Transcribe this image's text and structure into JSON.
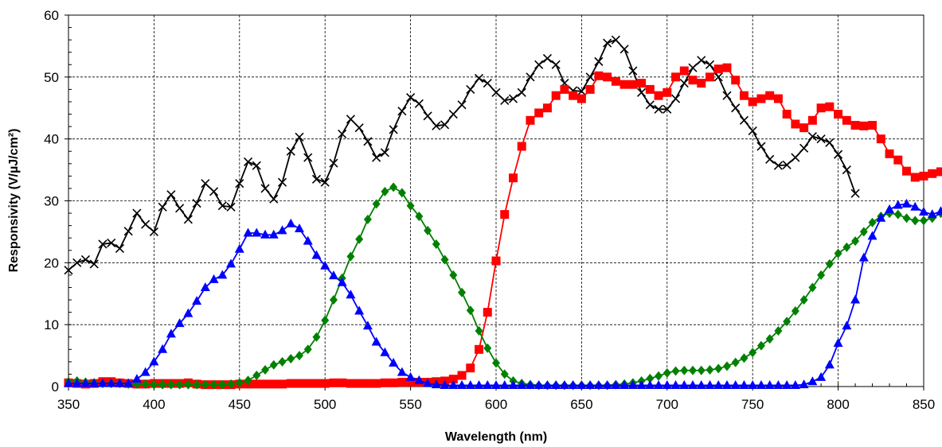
{
  "chart_data": {
    "type": "line",
    "title": "",
    "xlabel": "Wavelength (nm)",
    "ylabel": "Responsivity (V/µJ/cm²)",
    "xlim": [
      350,
      850
    ],
    "ylim": [
      0,
      60
    ],
    "x_ticks": [
      350,
      400,
      450,
      500,
      550,
      600,
      650,
      700,
      750,
      800,
      850
    ],
    "y_ticks": [
      0,
      10,
      20,
      30,
      40,
      50,
      60
    ],
    "grid": true,
    "grid_style": "dashed",
    "legend": "none",
    "x_step": 5,
    "series": [
      {
        "color": "#000000",
        "marker": "x",
        "x_start": 350,
        "values": [
          18.8,
          20,
          20.5,
          19.8,
          23,
          23.2,
          22.3,
          25.1,
          28,
          26.2,
          25,
          29,
          31,
          28.8,
          27,
          29.6,
          32.8,
          31.5,
          29.2,
          29,
          32.8,
          36.3,
          35.7,
          32,
          30.3,
          33,
          38,
          40.3,
          37,
          33.5,
          33,
          36.1,
          40.8,
          43.2,
          41.8,
          39.6,
          37,
          37.8,
          41.5,
          44.5,
          46.7,
          45.7,
          43.7,
          42.1,
          42.3,
          44,
          45.5,
          48,
          49.8,
          49,
          47.5,
          46.2,
          46.5,
          47.5,
          50,
          52,
          53,
          52,
          49,
          47.8,
          47.7,
          50,
          52.5,
          55.5,
          56,
          54.5,
          51,
          47.5,
          45.5,
          44.8,
          44.8,
          46.5,
          49,
          51.5,
          52.7,
          52,
          50,
          47,
          45,
          43,
          41.3,
          38.8,
          36.7,
          35.7,
          35.8,
          37,
          38.5,
          40.4,
          40,
          39.4,
          37.5,
          35,
          31.2
        ]
      },
      {
        "color": "#ff0000",
        "marker": "square",
        "x_start": 350,
        "values": [
          0.6,
          0.5,
          0.4,
          0.5,
          0.8,
          0.8,
          0.6,
          0.5,
          0.4,
          0.4,
          0.5,
          0.5,
          0.5,
          0.5,
          0.6,
          0.4,
          0.3,
          0.3,
          0.3,
          0.3,
          0.4,
          0.4,
          0.4,
          0.4,
          0.4,
          0.4,
          0.5,
          0.5,
          0.5,
          0.5,
          0.5,
          0.6,
          0.6,
          0.5,
          0.5,
          0.5,
          0.5,
          0.6,
          0.6,
          0.7,
          0.7,
          0.7,
          0.7,
          0.8,
          0.9,
          1.2,
          1.8,
          3,
          6,
          12,
          20.3,
          27.8,
          33.7,
          38.8,
          43,
          44.2,
          45,
          47,
          48,
          47,
          46.5,
          48,
          50.2,
          50,
          49.3,
          48.8,
          48.8,
          49,
          48,
          47,
          47.5,
          50,
          51,
          49.5,
          49,
          50,
          51.3,
          51.5,
          49.5,
          47,
          46,
          46.5,
          47,
          46.5,
          44,
          42.4,
          41.8,
          43,
          45,
          45.2,
          44,
          43,
          42.2,
          42.1,
          42.2,
          40,
          37.6,
          36.6,
          34.8,
          33.8,
          34,
          34.4,
          34.7
        ]
      },
      {
        "color": "#008000",
        "marker": "diamond",
        "x_start": 350,
        "values": [
          0.8,
          0.9,
          0.7,
          0.6,
          0.5,
          0.5,
          0.5,
          0.4,
          0.4,
          0.4,
          0.3,
          0.3,
          0.3,
          0.3,
          0.3,
          0.3,
          0.3,
          0.3,
          0.3,
          0.4,
          0.6,
          1,
          1.8,
          2.7,
          3.5,
          4,
          4.5,
          5,
          6,
          8,
          10.7,
          14,
          17.5,
          21,
          23.8,
          27,
          29.5,
          31.5,
          32.2,
          31.3,
          29.2,
          27.5,
          25.2,
          23,
          20.5,
          18,
          15.2,
          12.3,
          9,
          6.2,
          3.8,
          2,
          0.9,
          0.5,
          0.3,
          0.2,
          0.2,
          0.2,
          0.2,
          0.2,
          0.2,
          0.2,
          0.2,
          0.2,
          0.3,
          0.4,
          0.6,
          0.9,
          1.3,
          1.7,
          2.2,
          2.5,
          2.6,
          2.6,
          2.6,
          2.7,
          2.9,
          3.3,
          3.9,
          4.6,
          5.5,
          6.6,
          7.7,
          9,
          10.5,
          12.2,
          14,
          16,
          18,
          19.8,
          21.5,
          22.5,
          23.5,
          25,
          26.5,
          27.5,
          28,
          27.8,
          27.2,
          26.8,
          26.8,
          27.2,
          28
        ]
      },
      {
        "color": "#0000ff",
        "marker": "triangle",
        "x_start": 350,
        "values": [
          0.5,
          0.5,
          0.5,
          0.5,
          0.5,
          0.5,
          0.5,
          0.5,
          1.2,
          2.3,
          4,
          6,
          8.5,
          10.2,
          11.8,
          13.8,
          16,
          17.3,
          18,
          19.8,
          22.2,
          24.8,
          24.8,
          24.5,
          24.5,
          25.2,
          26.3,
          25.5,
          23.5,
          21.2,
          19.5,
          17.9,
          16.8,
          14.8,
          12.2,
          9.8,
          7.2,
          5.5,
          3.8,
          2.3,
          1.5,
          1,
          0.5,
          0.3,
          0.2,
          0.2,
          0.2,
          0.2,
          0.2,
          0.2,
          0.2,
          0.2,
          0.2,
          0.2,
          0.2,
          0.2,
          0.2,
          0.2,
          0.2,
          0.2,
          0.2,
          0.2,
          0.2,
          0.2,
          0.2,
          0.2,
          0.2,
          0.2,
          0.2,
          0.2,
          0.2,
          0.2,
          0.2,
          0.2,
          0.2,
          0.2,
          0.2,
          0.2,
          0.2,
          0.2,
          0.2,
          0.2,
          0.2,
          0.2,
          0.2,
          0.2,
          0.3,
          0.8,
          1.5,
          3.5,
          7,
          9.8,
          14,
          20.8,
          24.3,
          27.2,
          28.6,
          29.3,
          29.5,
          29,
          28.2,
          27.8,
          28.3
        ]
      }
    ]
  }
}
